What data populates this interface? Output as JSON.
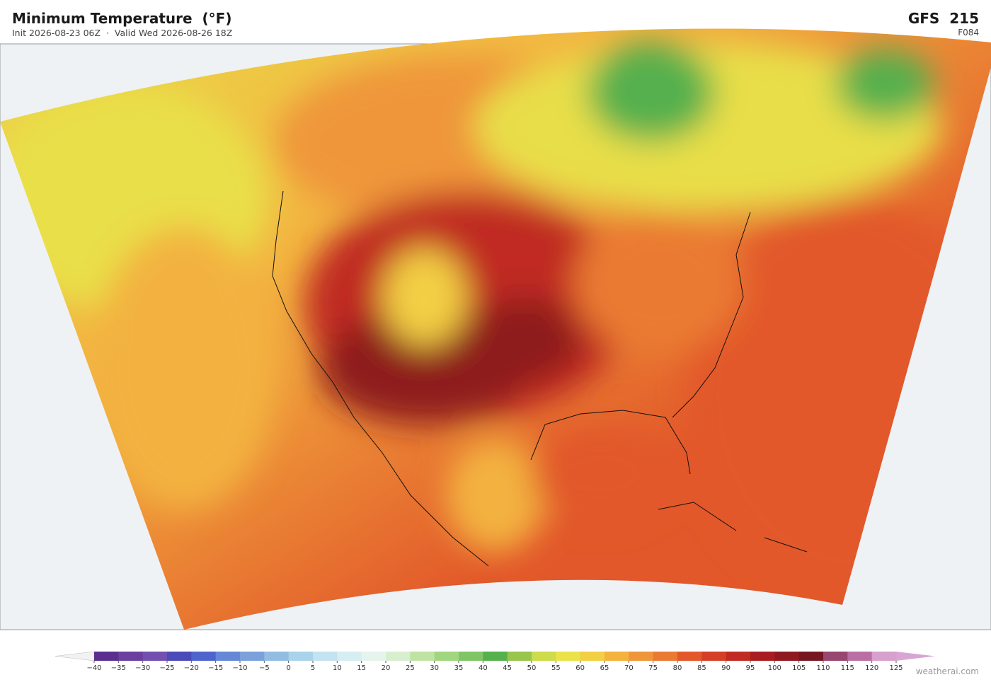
{
  "header": {
    "title": "Minimum Temperature  (°F)",
    "subtitle": "Init 2026-08-23 06Z  ·  Valid Wed 2026-08-26 18Z",
    "model": "GFS  215",
    "forecast_hour": "F084"
  },
  "colorbar": {
    "ticks": [
      {
        "value": -40,
        "label": "−40"
      },
      {
        "value": -35,
        "label": "−35"
      },
      {
        "value": -30,
        "label": "−30"
      },
      {
        "value": -25,
        "label": "−25"
      },
      {
        "value": -20,
        "label": "−20"
      },
      {
        "value": -15,
        "label": "−15"
      },
      {
        "value": -10,
        "label": "−10"
      },
      {
        "value": -5,
        "label": "−5"
      },
      0,
      5,
      10,
      15,
      20,
      25,
      30,
      35,
      40,
      45,
      50,
      55,
      60,
      65,
      70,
      75,
      80,
      85,
      90,
      95,
      100,
      105,
      110,
      115,
      120,
      125
    ],
    "colors": [
      "#5b2d8e",
      "#6a3f9e",
      "#7350b0",
      "#4a4ab8",
      "#4e64cc",
      "#6687d6",
      "#7ba0dc",
      "#92bde3",
      "#a9d3ea",
      "#c2e3ef",
      "#d6eef2",
      "#e6f4ee",
      "#d8efcf",
      "#bfe3a2",
      "#a0d67f",
      "#7fc565",
      "#55b04e",
      "#98c54c",
      "#cddc4a",
      "#ebe24a",
      "#f3cf45",
      "#f4b23f",
      "#ef963a",
      "#ea7a33",
      "#e2582a",
      "#d43f26",
      "#c02a22",
      "#a81e20",
      "#8e1a1f",
      "#761620",
      "#974770",
      "#b96ea4",
      "#d8a0cc"
    ],
    "under_color": "#f2f2f2",
    "over_color": "#d9a6d4"
  },
  "watermark": "weatherai.com"
}
